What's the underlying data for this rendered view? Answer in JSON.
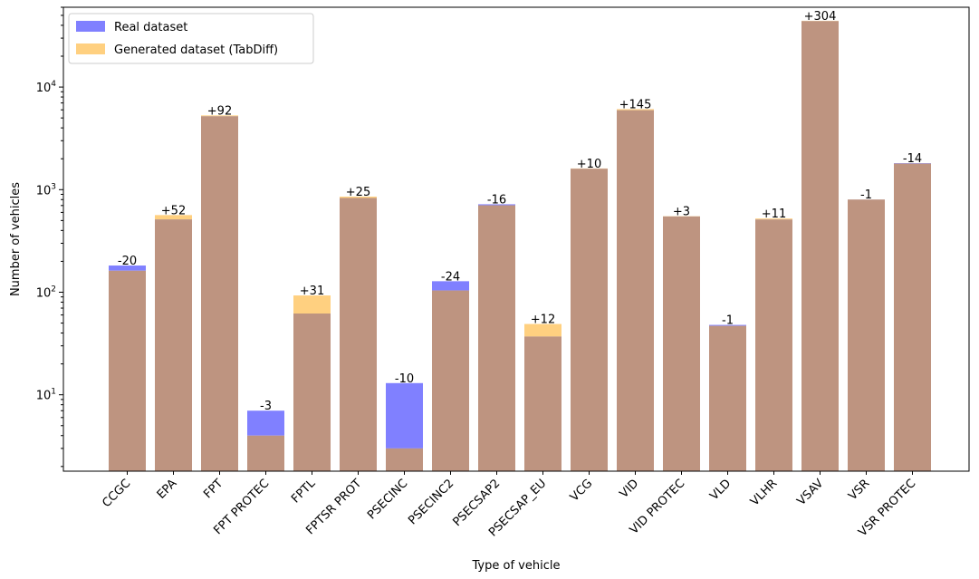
{
  "chart_data": {
    "type": "bar",
    "scale": "log",
    "xlabel": "Type of vehicle",
    "ylabel": "Number of vehicles",
    "ylim": [
      1.8,
      60000
    ],
    "yticks": [
      {
        "value": 10,
        "base": "10",
        "exp": "1"
      },
      {
        "value": 100,
        "base": "10",
        "exp": "2"
      },
      {
        "value": 1000,
        "base": "10",
        "exp": "3"
      },
      {
        "value": 10000,
        "base": "10",
        "exp": "4"
      }
    ],
    "categories": [
      "CCGC",
      "EPA",
      "FPT",
      "FPT PROTEC",
      "FPTL",
      "FPTSR PROT",
      "PSECINC",
      "PSECINC2",
      "PSECSAP2",
      "PSECSAP_EU",
      "VCG",
      "VID",
      "VID PROTEC",
      "VLD",
      "VLHR",
      "VSAV",
      "VSR",
      "VSR PROTEC"
    ],
    "series": [
      {
        "name": "Real dataset",
        "color": "#8080ff",
        "values": [
          182,
          513,
          5200,
          7,
          62,
          830,
          13,
          128,
          720,
          37,
          1600,
          5950,
          548,
          48,
          512,
          44000,
          802,
          1810
        ]
      },
      {
        "name": "Generated dataset (TabDiff)",
        "color": "#ffd080",
        "values": [
          162,
          565,
          5292,
          4,
          93,
          855,
          3,
          104,
          704,
          49,
          1610,
          6095,
          551,
          47,
          523,
          44304,
          801,
          1796
        ]
      }
    ],
    "overlap_color": "#be9480",
    "diff_labels": [
      "-20",
      "+52",
      "+92",
      "-3",
      "+31",
      "+25",
      "-10",
      "-24",
      "-16",
      "+12",
      "+10",
      "+145",
      "+3",
      "-1",
      "+11",
      "+304",
      "-1",
      "-14"
    ],
    "legend": {
      "position": "top-left",
      "entries": [
        "Real dataset",
        "Generated dataset (TabDiff)"
      ]
    }
  }
}
